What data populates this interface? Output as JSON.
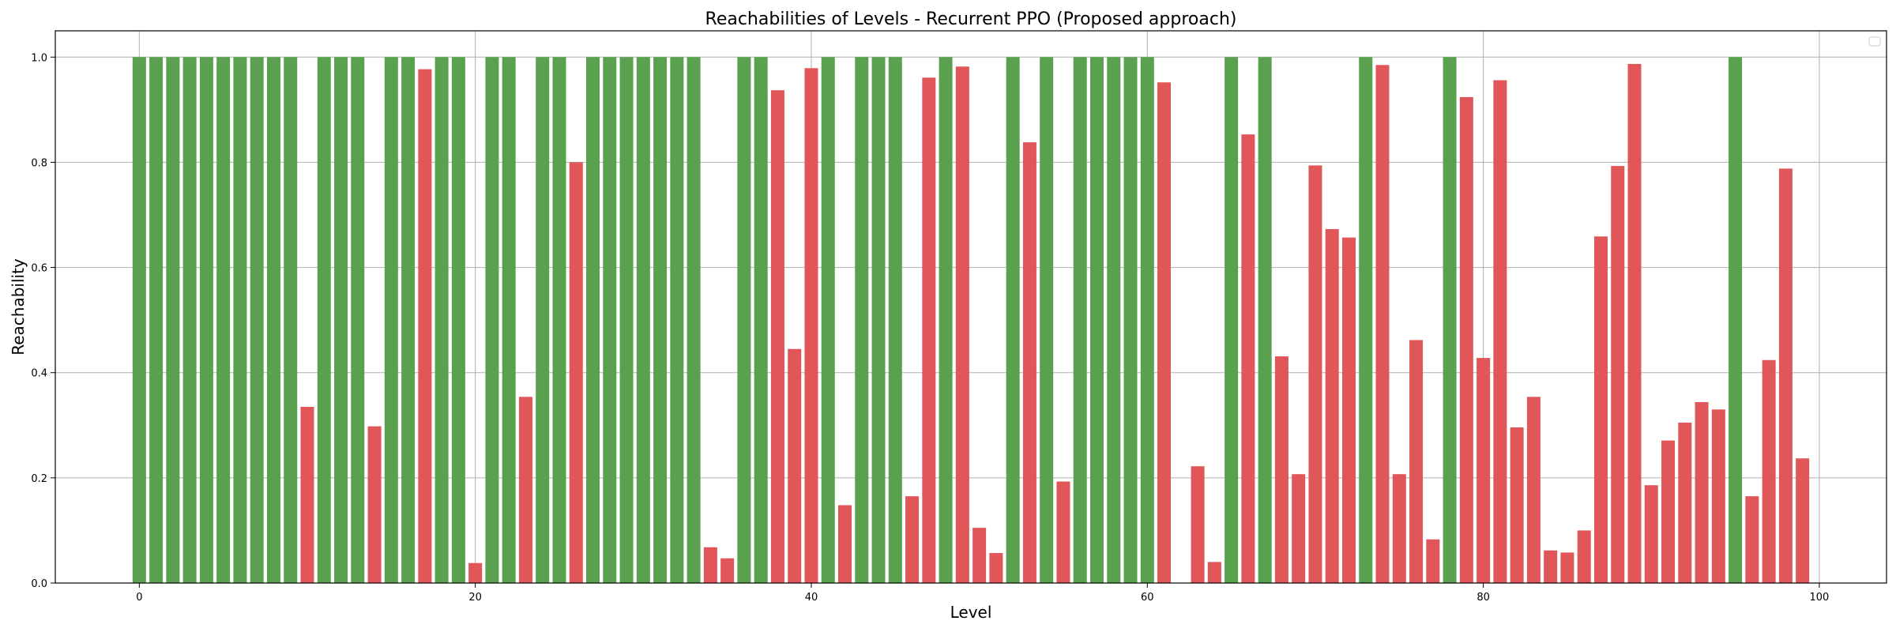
{
  "chart_data": {
    "type": "bar",
    "title": "Reachabilities of Levels - Recurrent PPO (Proposed approach)",
    "xlabel": "Level",
    "ylabel": "Reachability",
    "xlim": [
      -5,
      104
    ],
    "ylim": [
      0,
      1.05
    ],
    "xticks": [
      0,
      20,
      40,
      60,
      80,
      100
    ],
    "yticks": [
      0.0,
      0.2,
      0.4,
      0.6,
      0.8,
      1.0
    ],
    "ytick_labels": [
      "0.0",
      "0.2",
      "0.4",
      "0.6",
      "0.8",
      "1.0"
    ],
    "grid": true,
    "legend": "top-right",
    "colors": {
      "reached": "#59a14f",
      "partial": "#e15759"
    },
    "x": [
      0,
      1,
      2,
      3,
      4,
      5,
      6,
      7,
      8,
      9,
      10,
      11,
      12,
      13,
      14,
      15,
      16,
      17,
      18,
      19,
      20,
      21,
      22,
      23,
      24,
      25,
      26,
      27,
      28,
      29,
      30,
      31,
      32,
      33,
      34,
      35,
      36,
      37,
      38,
      39,
      40,
      41,
      42,
      43,
      44,
      45,
      46,
      47,
      48,
      49,
      50,
      51,
      52,
      53,
      54,
      55,
      56,
      57,
      58,
      59,
      60,
      61,
      62,
      63,
      64,
      65,
      66,
      67,
      68,
      69,
      70,
      71,
      72,
      73,
      74,
      75,
      76,
      77,
      78,
      79,
      80,
      81,
      82,
      83,
      84,
      85,
      86,
      87,
      88,
      89,
      90,
      91,
      92,
      93,
      94,
      95,
      96,
      97,
      98,
      99
    ],
    "values": [
      1,
      1,
      1,
      1,
      1,
      1,
      1,
      1,
      1,
      1,
      0.335,
      1,
      1,
      1,
      0.298,
      1,
      1,
      0.977,
      1,
      1,
      0.038,
      1,
      1,
      0.354,
      1,
      1,
      0.8,
      1,
      1,
      1,
      1,
      1,
      1,
      1,
      0.068,
      0.047,
      1,
      1,
      0.937,
      0.445,
      0.979,
      1,
      0.148,
      1,
      1,
      1,
      0.165,
      0.961,
      1,
      0.982,
      0.105,
      0.057,
      1,
      0.838,
      1,
      0.193,
      1,
      1,
      1,
      1,
      1,
      0.952,
      0,
      0.222,
      0.04,
      1,
      0.853,
      1,
      0.431,
      0.207,
      0.794,
      0.673,
      0.657,
      1,
      0.985,
      0.207,
      0.462,
      0.083,
      1,
      0.924,
      0.428,
      0.956,
      0.296,
      0.354,
      0.062,
      0.058,
      0.1,
      0.659,
      0.793,
      0.987,
      0.186,
      0.271,
      0.305,
      0.344,
      0.33,
      1,
      0.165,
      0.424,
      0.788,
      0.237
    ]
  }
}
